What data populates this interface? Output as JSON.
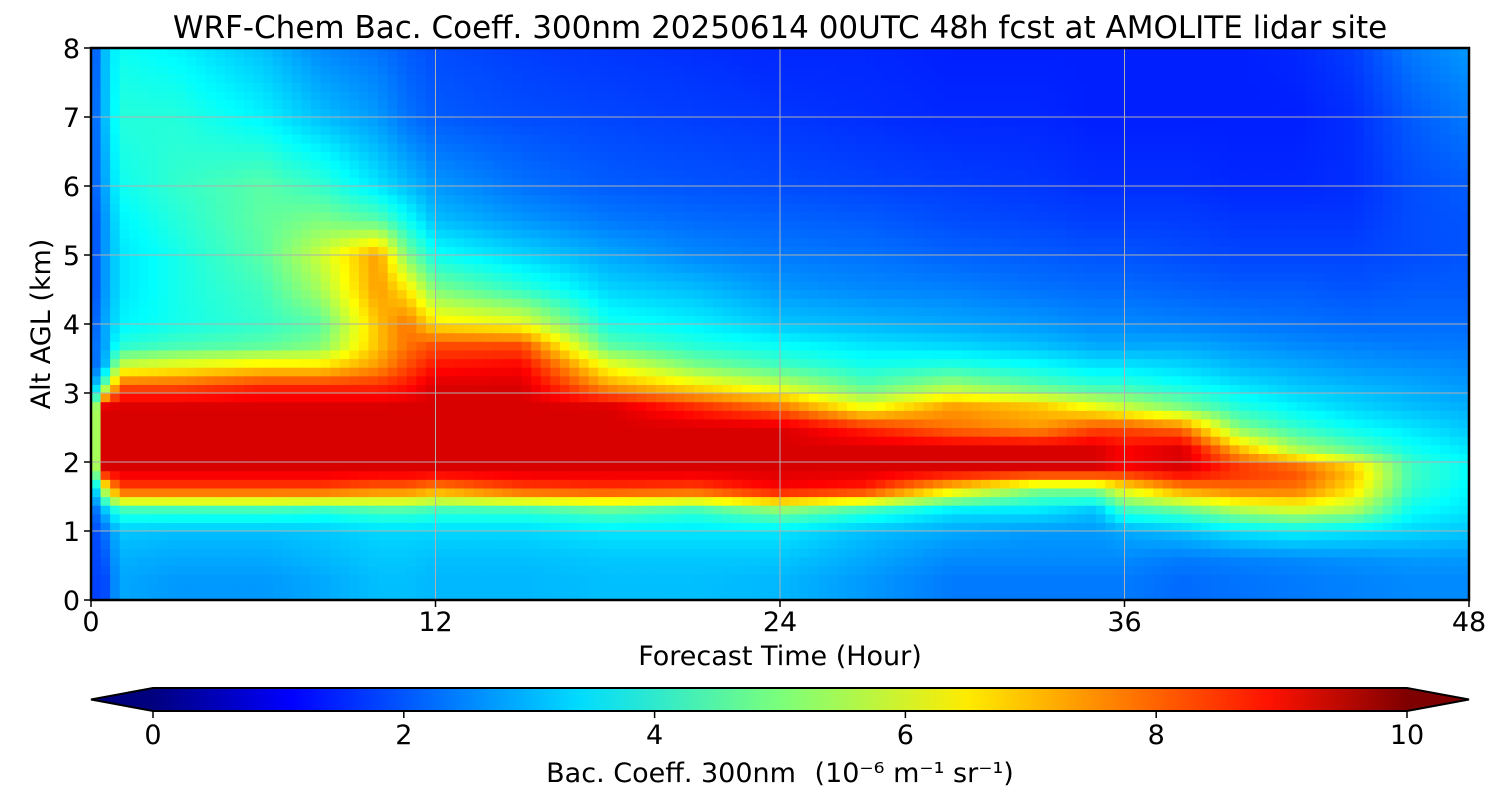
{
  "chart_data": {
    "type": "heatmap",
    "title": "WRF-Chem Bac. Coeff. 300nm  20250614 00UTC 48h fcst at AMOLITE lidar site",
    "xlabel": "Forecast Time (Hour)",
    "ylabel": "Alt AGL (km)",
    "xlim": [
      0,
      48
    ],
    "ylim": [
      0,
      8
    ],
    "x_ticks": [
      0,
      12,
      24,
      36,
      48
    ],
    "y_ticks": [
      0,
      1,
      2,
      3,
      4,
      5,
      6,
      7,
      8
    ],
    "grid": true,
    "colormap": "jet",
    "colorbar": {
      "orientation": "horizontal",
      "label_main": "Bac. Coeff. 300nm",
      "label_units": "(10⁻⁶ m⁻¹ sr⁻¹)",
      "range": [
        0,
        10
      ],
      "ticks": [
        0,
        2,
        4,
        6,
        8,
        10
      ],
      "extend": "both"
    },
    "x_hours": [
      0,
      0.5,
      1,
      3,
      6,
      8,
      10,
      11,
      12,
      15,
      18,
      21,
      24,
      27,
      30,
      33,
      35,
      36,
      38,
      40,
      42,
      44,
      46,
      48
    ],
    "z_km": [
      0,
      0.3,
      0.6,
      1.0,
      1.3,
      1.6,
      1.9,
      2.2,
      2.5,
      2.8,
      3.1,
      3.4,
      3.7,
      4.0,
      4.5,
      5.0,
      5.5,
      6.0,
      7.0,
      8.0
    ],
    "values": [
      [
        0.8,
        0.8,
        0.8,
        0.8,
        1.0,
        1.4,
        3.0,
        3.0,
        3.0,
        3.0,
        1.5,
        1.0,
        1.2,
        1.0,
        0.8,
        0.8,
        0.8,
        1.0,
        1.0,
        0.8
      ],
      [
        1.0,
        1.0,
        1.2,
        1.5,
        2.5,
        6.0,
        10.5,
        10.5,
        10.5,
        10.5,
        5.0,
        2.5,
        2.2,
        2.2,
        2.0,
        2.0,
        2.0,
        2.2,
        2.5,
        2.5
      ],
      [
        2.2,
        2.2,
        2.3,
        2.6,
        4.0,
        9.0,
        10.5,
        10.5,
        10.5,
        10.5,
        9.0,
        6.0,
        3.8,
        3.2,
        3.0,
        3.0,
        3.2,
        3.5,
        3.8,
        3.5
      ],
      [
        2.0,
        2.0,
        2.2,
        2.5,
        4.0,
        9.0,
        10.5,
        10.5,
        10.5,
        10.5,
        9.0,
        6.5,
        4.2,
        3.6,
        3.6,
        3.6,
        3.8,
        4.0,
        3.8,
        3.2
      ],
      [
        2.0,
        2.0,
        2.2,
        2.5,
        4.0,
        9.0,
        10.5,
        10.5,
        10.5,
        10.5,
        9.5,
        7.0,
        4.5,
        4.0,
        4.2,
        4.5,
        4.6,
        4.5,
        3.2,
        2.5
      ],
      [
        2.2,
        2.2,
        2.4,
        2.6,
        3.8,
        9.0,
        10.5,
        10.5,
        10.5,
        10.5,
        9.5,
        7.0,
        5.0,
        4.5,
        5.5,
        6.0,
        5.0,
        4.0,
        2.5,
        1.8
      ],
      [
        2.5,
        2.5,
        2.6,
        2.8,
        4.2,
        8.5,
        10.5,
        10.5,
        10.5,
        10.5,
        9.5,
        8.0,
        7.5,
        7.5,
        8.0,
        8.0,
        4.5,
        3.0,
        2.0,
        1.5
      ],
      [
        2.5,
        2.5,
        2.6,
        2.8,
        4.2,
        8.5,
        10.5,
        10.5,
        10.5,
        10.5,
        9.8,
        9.0,
        8.5,
        8.5,
        7.0,
        5.0,
        3.5,
        2.5,
        1.5,
        1.2
      ],
      [
        2.4,
        2.4,
        2.5,
        2.8,
        4.0,
        8.0,
        10.5,
        10.5,
        10.5,
        10.5,
        10.5,
        9.8,
        9.0,
        7.0,
        5.0,
        3.5,
        2.5,
        2.0,
        1.2,
        1.0
      ],
      [
        2.4,
        2.4,
        2.5,
        2.8,
        4.0,
        9.0,
        10.5,
        10.5,
        10.5,
        10.5,
        10.5,
        10.0,
        9.0,
        6.5,
        4.0,
        2.8,
        2.0,
        1.5,
        1.0,
        0.8
      ],
      [
        2.5,
        2.5,
        2.6,
        3.0,
        4.5,
        9.2,
        10.5,
        10.5,
        10.5,
        10.5,
        8.0,
        6.5,
        4.5,
        3.6,
        2.8,
        2.2,
        1.6,
        1.2,
        0.9,
        0.7
      ],
      [
        2.5,
        2.5,
        2.6,
        3.0,
        4.0,
        9.0,
        10.5,
        10.5,
        10.5,
        9.5,
        7.0,
        5.0,
        3.8,
        3.2,
        2.5,
        1.8,
        1.4,
        1.1,
        0.8,
        0.6
      ],
      [
        2.4,
        2.4,
        2.6,
        3.0,
        5.0,
        10.0,
        10.5,
        10.5,
        10.5,
        8.5,
        6.0,
        4.2,
        3.4,
        2.6,
        2.0,
        1.6,
        1.3,
        1.0,
        0.7,
        0.5
      ],
      [
        2.0,
        2.0,
        2.2,
        2.5,
        4.0,
        9.5,
        10.5,
        10.5,
        9.5,
        6.5,
        4.5,
        3.6,
        3.0,
        2.4,
        1.8,
        1.5,
        1.2,
        0.9,
        0.6,
        0.5
      ],
      [
        1.6,
        1.6,
        1.8,
        2.2,
        3.0,
        7.0,
        10.5,
        10.5,
        8.5,
        8.0,
        5.5,
        3.8,
        2.8,
        2.2,
        1.7,
        1.3,
        1.0,
        0.8,
        0.5,
        0.4
      ],
      [
        1.6,
        1.6,
        1.8,
        2.0,
        3.0,
        5.0,
        10.5,
        10.5,
        8.0,
        7.5,
        4.5,
        3.4,
        2.5,
        2.0,
        1.5,
        1.2,
        0.9,
        0.7,
        0.5,
        0.4
      ],
      [
        1.6,
        1.6,
        1.8,
        2.0,
        2.5,
        5.0,
        10.5,
        10.5,
        9.0,
        6.5,
        4.0,
        3.0,
        2.2,
        1.8,
        1.4,
        1.1,
        0.8,
        0.6,
        0.4,
        0.4
      ],
      [
        1.6,
        1.6,
        1.8,
        2.2,
        4.0,
        6.5,
        10.0,
        10.0,
        9.0,
        6.0,
        4.0,
        3.0,
        2.2,
        1.8,
        1.4,
        1.1,
        0.8,
        0.6,
        0.4,
        0.4
      ],
      [
        1.4,
        1.4,
        1.6,
        2.5,
        4.5,
        8.0,
        10.5,
        10.5,
        8.5,
        5.0,
        3.5,
        2.8,
        2.2,
        1.7,
        1.3,
        1.0,
        0.8,
        0.6,
        0.4,
        0.4
      ],
      [
        1.5,
        1.5,
        1.7,
        3.0,
        5.5,
        8.5,
        9.5,
        7.5,
        5.0,
        3.8,
        3.0,
        2.4,
        2.0,
        1.6,
        1.2,
        0.9,
        0.7,
        0.5,
        0.4,
        0.4
      ],
      [
        1.6,
        1.6,
        1.8,
        3.2,
        6.0,
        8.5,
        9.0,
        5.5,
        4.0,
        3.2,
        2.6,
        2.2,
        1.8,
        1.5,
        1.2,
        0.9,
        0.7,
        0.5,
        0.4,
        0.5
      ],
      [
        1.7,
        1.7,
        1.9,
        3.0,
        5.5,
        7.0,
        7.5,
        4.5,
        3.4,
        2.8,
        2.4,
        2.0,
        1.7,
        1.4,
        1.1,
        0.9,
        0.7,
        0.6,
        0.6,
        0.8
      ],
      [
        1.8,
        1.8,
        2.0,
        2.8,
        3.4,
        4.0,
        4.2,
        3.5,
        3.0,
        2.5,
        2.2,
        1.9,
        1.6,
        1.4,
        1.2,
        1.0,
        1.0,
        1.0,
        1.2,
        1.6
      ],
      [
        1.8,
        1.8,
        2.0,
        2.6,
        3.0,
        3.2,
        3.4,
        3.0,
        2.6,
        2.3,
        2.0,
        1.8,
        1.6,
        1.4,
        1.2,
        1.1,
        1.1,
        1.2,
        1.6,
        2.0
      ]
    ]
  }
}
